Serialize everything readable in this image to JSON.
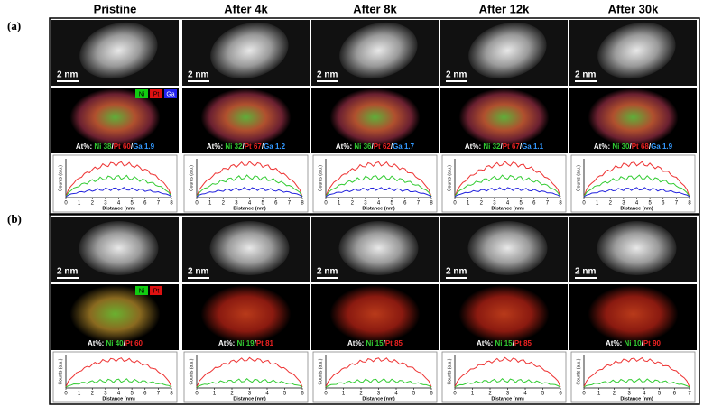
{
  "panel_labels": [
    "(a)",
    "(b)"
  ],
  "columns": [
    "Pristine",
    "After 4k",
    "After 8k",
    "After 12k",
    "After 30k"
  ],
  "panels": [
    {
      "scale_bars": [
        "2 nm",
        "2 nm",
        "2 nm",
        "2 nm",
        "2 nm"
      ],
      "legend": [
        "Ni",
        "Pt",
        "Ga"
      ],
      "sep": "/",
      "composition": [
        {
          "prefix": "At%:",
          "ni": "Ni 38",
          "pt": "Pt 60",
          "ga": "Ga 1.9"
        },
        {
          "prefix": "At%:",
          "ni": "Ni 32",
          "pt": "Pt 67",
          "ga": "Ga 1.2"
        },
        {
          "prefix": "At%:",
          "ni": "Ni 36",
          "pt": "Pt 62",
          "ga": "Ga 1.7"
        },
        {
          "prefix": "At%:",
          "ni": "Ni 32",
          "pt": "Pt 67",
          "ga": "Ga 1.1"
        },
        {
          "prefix": "At%:",
          "ni": "Ni 30",
          "pt": "Pt 68",
          "ga": "Ga 1.9"
        }
      ],
      "profiles": [
        {
          "ylabel": "Counts (a.u.)",
          "xlabel": "Distance (nm)",
          "xticks": [
            0,
            1,
            2,
            3,
            4,
            5,
            6,
            7,
            8
          ]
        },
        {
          "ylabel": "Counts (a.u.)",
          "xlabel": "Distance (nm)",
          "xticks": [
            0,
            1,
            2,
            3,
            4,
            5,
            6,
            7,
            8
          ]
        },
        {
          "ylabel": "Counts (a.u.)",
          "xlabel": "Distance (nm)",
          "xticks": [
            0,
            1,
            2,
            3,
            4,
            5,
            6,
            7,
            8
          ]
        },
        {
          "ylabel": "Counts (a.u.)",
          "xlabel": "Distance (nm)",
          "xticks": [
            0,
            1,
            2,
            3,
            4,
            5,
            6,
            7,
            8
          ]
        },
        {
          "ylabel": "Counts (a.u.)",
          "xlabel": "Distance (nm)",
          "xticks": [
            0,
            1,
            2,
            3,
            4,
            5,
            6,
            7,
            8
          ]
        }
      ]
    },
    {
      "scale_bars": [
        "2 nm",
        "2 nm",
        "2 nm",
        "2 nm",
        "2 nm"
      ],
      "legend": [
        "Ni",
        "Pt"
      ],
      "sep": "/",
      "composition": [
        {
          "prefix": "At%:",
          "ni": "Ni 40",
          "pt": "Pt 60"
        },
        {
          "prefix": "At%:",
          "ni": "Ni 19",
          "pt": "Pt 81"
        },
        {
          "prefix": "At%:",
          "ni": "Ni 15",
          "pt": "Pt 85"
        },
        {
          "prefix": "At%:",
          "ni": "Ni 15",
          "pt": "Pt 85"
        },
        {
          "prefix": "At%:",
          "ni": "Ni 10",
          "pt": "Pt 90"
        }
      ],
      "profiles": [
        {
          "ylabel": "Counts (a.u.)",
          "xlabel": "Distance (nm)",
          "xticks": [
            0,
            1,
            2,
            3,
            4,
            5,
            6,
            7,
            8
          ]
        },
        {
          "ylabel": "Counts (a.u.)",
          "xlabel": "Distance (nm)",
          "xticks": [
            0,
            1,
            2,
            3,
            4,
            5,
            6
          ]
        },
        {
          "ylabel": "Counts (a.u.)",
          "xlabel": "Distance (nm)",
          "xticks": [
            0,
            1,
            2,
            3,
            4,
            5,
            6
          ]
        },
        {
          "ylabel": "Counts (a.u.)",
          "xlabel": "Distance (nm)",
          "xticks": [
            0,
            1,
            2,
            3,
            4,
            5,
            6
          ]
        },
        {
          "ylabel": "Counts (a.u.)",
          "xlabel": "Distance (nm)",
          "xticks": [
            0,
            1,
            2,
            3,
            4,
            5,
            6,
            7
          ]
        }
      ]
    }
  ]
}
